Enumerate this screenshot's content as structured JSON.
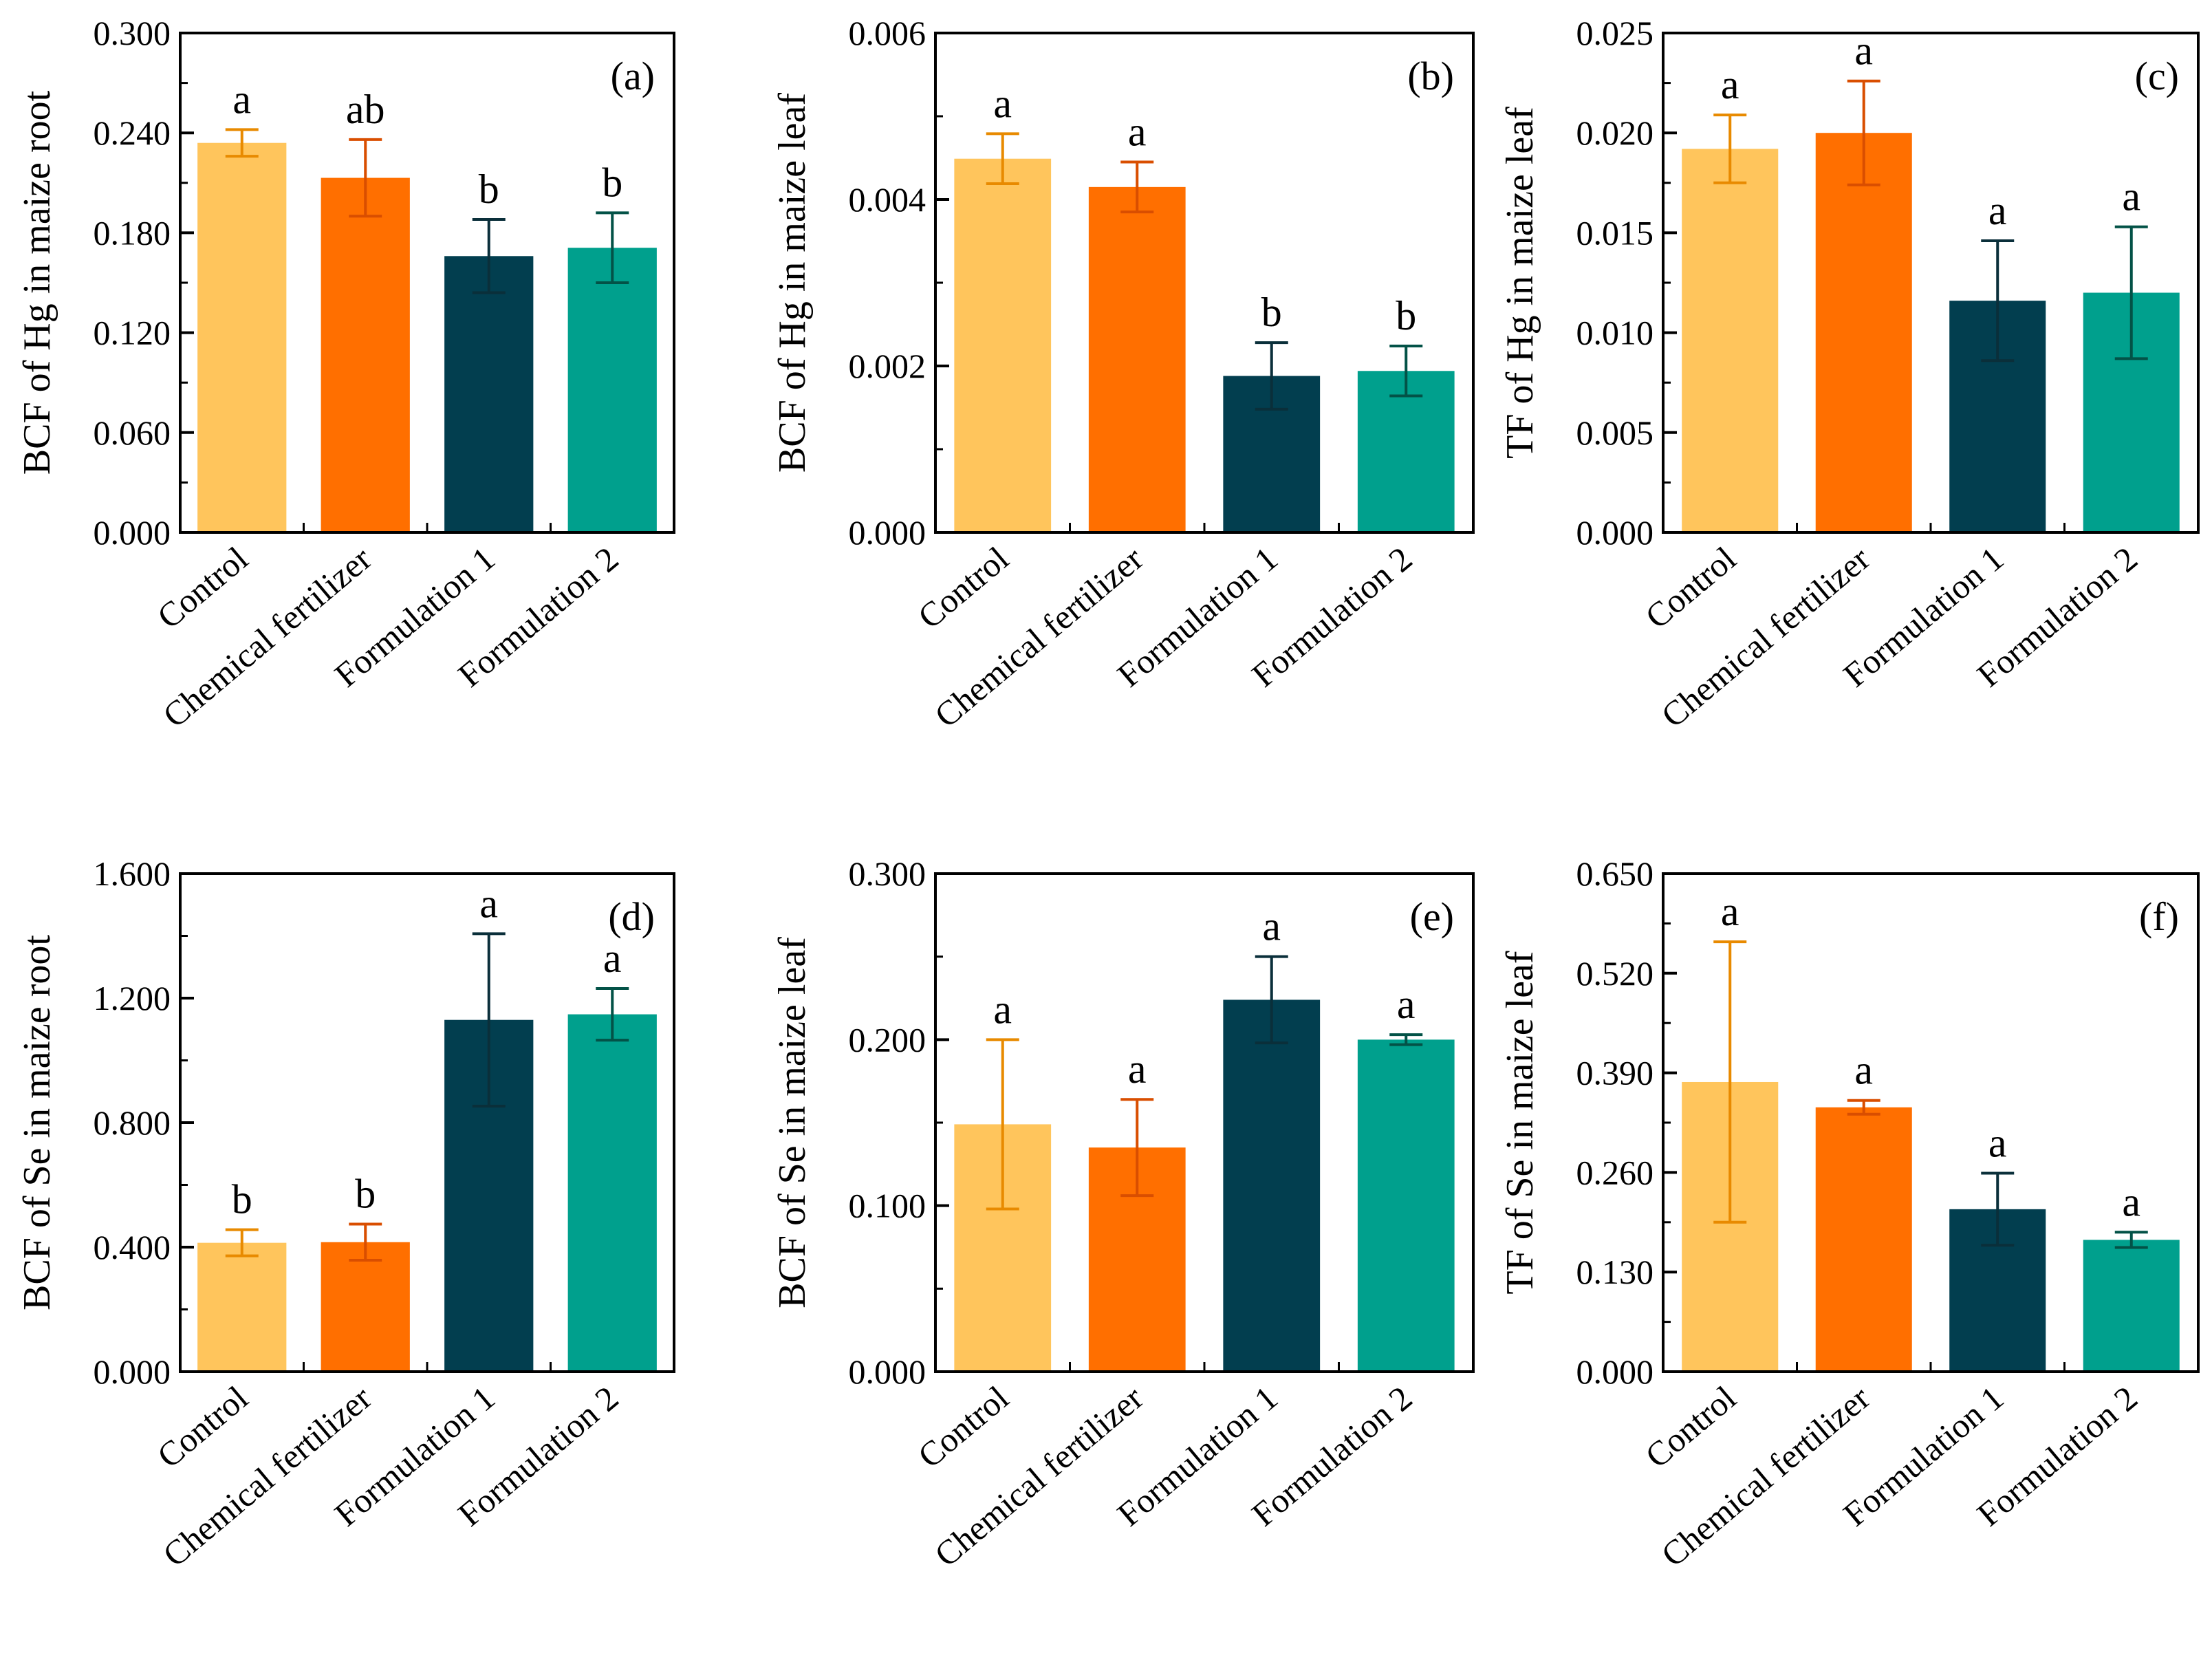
{
  "categories": [
    "Control",
    "Chemical fertilizer",
    "Formulation 1",
    "Formulation 2"
  ],
  "colors": {
    "control": "#FFC55C",
    "chemical": "#FF6F00",
    "formulation1": "#023E4F",
    "formulation2": "#00A08D",
    "error_control": "#E88A00",
    "error_chemical": "#D94E00",
    "error_formulation1": "#0A2F3A",
    "error_formulation2": "#035247"
  },
  "chart_data": [
    {
      "type": "bar",
      "panel": "(a)",
      "title": "",
      "xlabel": "",
      "ylabel": "BCF of Hg in maize root",
      "ylim": [
        0,
        0.3
      ],
      "yticks": [
        "0.000",
        "0.060",
        "0.120",
        "0.180",
        "0.240",
        "0.300"
      ],
      "categories": [
        "Control",
        "Chemical fertilizer",
        "Formulation 1",
        "Formulation 2"
      ],
      "values": [
        0.234,
        0.213,
        0.166,
        0.171
      ],
      "errors": [
        0.008,
        0.023,
        0.022,
        0.021
      ],
      "significance": [
        "a",
        "ab",
        "b",
        "b"
      ]
    },
    {
      "type": "bar",
      "panel": "(b)",
      "title": "",
      "xlabel": "",
      "ylabel": "BCF of Hg in maize leaf",
      "ylim": [
        0,
        0.006
      ],
      "yticks": [
        "0.000",
        "0.002",
        "0.004",
        "0.006"
      ],
      "categories": [
        "Control",
        "Chemical fertilizer",
        "Formulation 1",
        "Formulation 2"
      ],
      "values": [
        0.00449,
        0.00415,
        0.00188,
        0.00194
      ],
      "errors": [
        0.0003,
        0.0003,
        0.0004,
        0.0003
      ],
      "significance": [
        "a",
        "a",
        "b",
        "b"
      ]
    },
    {
      "type": "bar",
      "panel": "(c)",
      "title": "",
      "xlabel": "",
      "ylabel": "TF of Hg in maize leaf",
      "ylim": [
        0,
        0.025
      ],
      "yticks": [
        "0.000",
        "0.005",
        "0.010",
        "0.015",
        "0.020",
        "0.025"
      ],
      "categories": [
        "Control",
        "Chemical fertilizer",
        "Formulation 1",
        "Formulation 2"
      ],
      "values": [
        0.0192,
        0.02,
        0.0116,
        0.012
      ],
      "errors": [
        0.0017,
        0.0026,
        0.003,
        0.0033
      ],
      "significance": [
        "a",
        "a",
        "a",
        "a"
      ]
    },
    {
      "type": "bar",
      "panel": "(d)",
      "title": "",
      "xlabel": "",
      "ylabel": "BCF of Se in maize root",
      "ylim": [
        0,
        1.6
      ],
      "yticks": [
        "0.000",
        "0.400",
        "0.800",
        "1.200",
        "1.600"
      ],
      "categories": [
        "Control",
        "Chemical fertilizer",
        "Formulation 1",
        "Formulation 2"
      ],
      "values": [
        0.414,
        0.416,
        1.13,
        1.148
      ],
      "errors": [
        0.042,
        0.058,
        0.277,
        0.083
      ],
      "significance": [
        "b",
        "b",
        "a",
        "a"
      ]
    },
    {
      "type": "bar",
      "panel": "(e)",
      "title": "",
      "xlabel": "",
      "ylabel": "BCF of Se in maize leaf",
      "ylim": [
        0,
        0.3
      ],
      "yticks": [
        "0.000",
        "0.100",
        "0.200",
        "0.300"
      ],
      "categories": [
        "Control",
        "Chemical fertilizer",
        "Formulation 1",
        "Formulation 2"
      ],
      "values": [
        0.149,
        0.135,
        0.224,
        0.2
      ],
      "errors": [
        0.051,
        0.029,
        0.026,
        0.003
      ],
      "significance": [
        "a",
        "a",
        "a",
        "a"
      ]
    },
    {
      "type": "bar",
      "panel": "(f)",
      "title": "",
      "xlabel": "",
      "ylabel": "TF of Se in maize leaf",
      "ylim": [
        0,
        0.65
      ],
      "yticks": [
        "0.000",
        "0.130",
        "0.260",
        "0.390",
        "0.520",
        "0.650"
      ],
      "categories": [
        "Control",
        "Chemical fertilizer",
        "Formulation 1",
        "Formulation 2"
      ],
      "values": [
        0.378,
        0.345,
        0.212,
        0.172
      ],
      "errors": [
        0.183,
        0.009,
        0.047,
        0.01
      ],
      "significance": [
        "a",
        "a",
        "a",
        "a"
      ]
    }
  ]
}
